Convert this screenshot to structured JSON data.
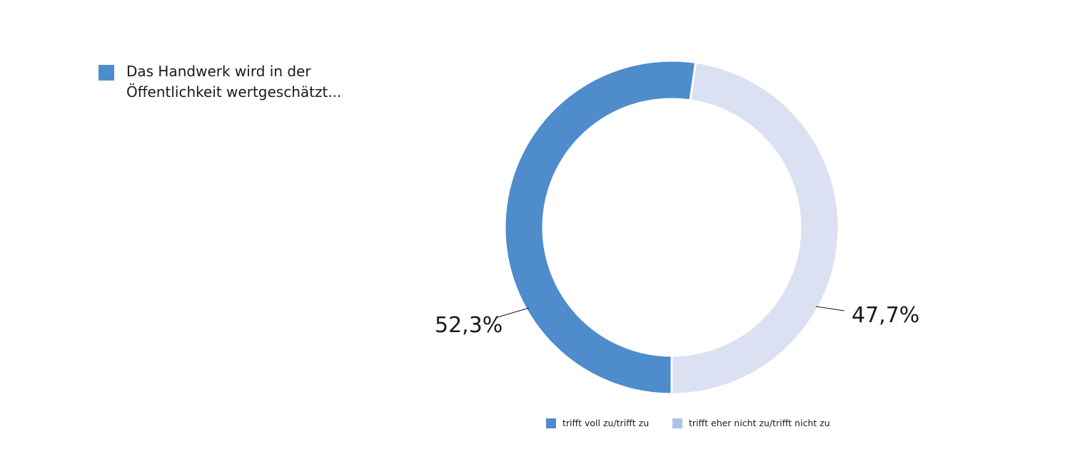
{
  "chart_data": {
    "type": "pie",
    "donut": true,
    "title": "Das Handwerk wird in der Öffentlichkeit wertgeschätzt...",
    "categories": [
      "trifft voll zu/trifft zu",
      "trifft eher nicht zu/trifft nicht zu"
    ],
    "values": [
      52.3,
      47.7
    ],
    "value_labels": [
      "52,3%",
      "47,7%"
    ],
    "unit": "%",
    "colors": [
      "#4e8ccb",
      "#dbe0f3"
    ],
    "legend_colors": [
      "#4e8ccb",
      "#a9c4e6"
    ],
    "title_marker_color": "#4e8ccb",
    "legend_position": "bottom"
  }
}
